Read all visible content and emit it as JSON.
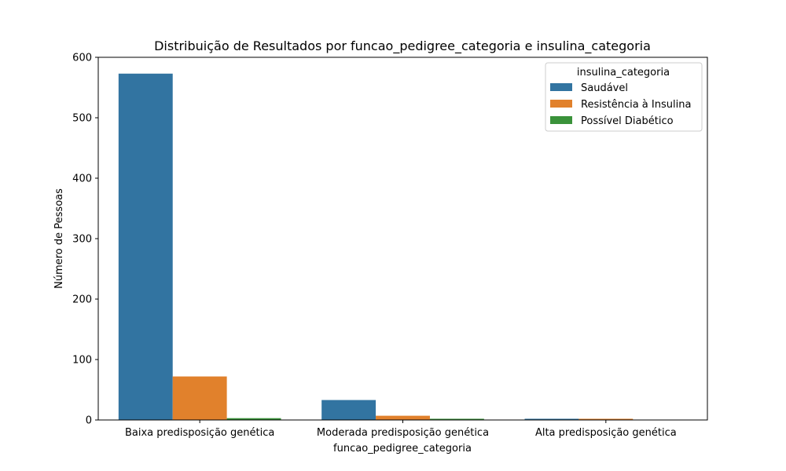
{
  "chart_data": {
    "type": "bar",
    "title": "Distribuição de Resultados por funcao_pedigree_categoria e insulina_categoria",
    "xlabel": "funcao_pedigree_categoria",
    "ylabel": "Número de Pessoas",
    "categories": [
      "Baixa predisposição genética",
      "Moderada predisposição genética",
      "Alta predisposição genética"
    ],
    "series": [
      {
        "name": "Saudável",
        "color": "#3274a1",
        "values": [
          573,
          33,
          2
        ]
      },
      {
        "name": "Resistência à Insulina",
        "color": "#e1812c",
        "values": [
          72,
          7,
          2
        ]
      },
      {
        "name": "Possível Diabético",
        "color": "#3a923a",
        "values": [
          3,
          2,
          0
        ]
      }
    ],
    "ylim": [
      0,
      600
    ],
    "yticks": [
      0,
      100,
      200,
      300,
      400,
      500,
      600
    ],
    "grid": false,
    "legend": {
      "title": "insulina_categoria",
      "placement": "top-right"
    }
  }
}
